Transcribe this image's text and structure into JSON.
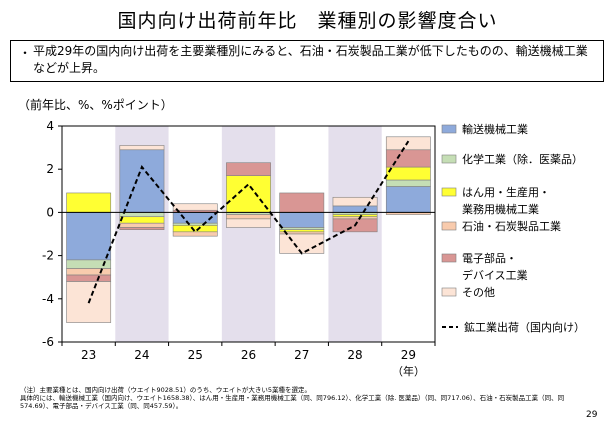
{
  "page": {
    "title": "国内向け出荷前年比　業種別の影響度合い",
    "bullet": "・",
    "summary": "平成29年の国内向け出荷を主要業種別にみると、石油・石炭製品工業が低下したものの、輸送機械工業などが上昇。",
    "unit_label": "（前年比、%、%ポイント）",
    "year_unit": "（年）",
    "notes": [
      "（注）主要業種とは、国内向け出荷（ウエイト9028.51）のうち、ウエイトが大きい5業種を選定。",
      "具体的には、輸送機械工業（国内向け、ウエイト1658.38）、はん用・生産用・業務用機械工業（同、同796.12）、化学工業（除. 医薬品）（同、同717.06）、石油・石炭製品工業（同、同",
      "574.69）、電子部品・デバイス工業（同、同457.59）。"
    ],
    "page_number": "29"
  },
  "chart_data": {
    "type": "bar",
    "stacked": true,
    "categories": [
      "23",
      "24",
      "25",
      "26",
      "27",
      "28",
      "29"
    ],
    "ylim": [
      -6,
      4
    ],
    "yticks": [
      4,
      2,
      0,
      -2,
      -4,
      -6
    ],
    "shaded_categories": [
      "24",
      "26",
      "28"
    ],
    "series": [
      {
        "name": "輸送機械工業",
        "color": "#8eaadb",
        "values": [
          -2.2,
          2.9,
          -0.5,
          0.0,
          -0.7,
          0.3,
          1.2
        ]
      },
      {
        "name": "化学工業（除．医薬品）",
        "color": "#c5deb5",
        "values": [
          -0.4,
          -0.2,
          -0.1,
          -0.1,
          -0.1,
          -0.1,
          0.3
        ]
      },
      {
        "name": "はん用・生産用・\n業務用機械工業",
        "color": "#ffff33",
        "values": [
          0.9,
          -0.3,
          -0.3,
          1.7,
          -0.1,
          -0.1,
          0.6
        ]
      },
      {
        "name": "石油・石炭製品工業",
        "color": "#f8cbad",
        "values": [
          -0.3,
          -0.2,
          -0.2,
          -0.2,
          -0.1,
          -0.1,
          -0.1
        ]
      },
      {
        "name": "電子部品・\nデバイス工業",
        "color": "#d99694",
        "values": [
          -0.3,
          -0.1,
          0.1,
          0.6,
          0.9,
          -0.6,
          0.8
        ]
      },
      {
        "name": "その他",
        "color": "#fce4d6",
        "values": [
          -1.9,
          0.2,
          0.3,
          -0.4,
          -0.9,
          0.4,
          0.6
        ]
      }
    ],
    "line": {
      "name": "鉱工業出荷（国内向け）",
      "color": "#000000",
      "dashed": true,
      "values": [
        -4.2,
        2.1,
        -0.9,
        1.3,
        -1.9,
        -0.6,
        3.3
      ]
    },
    "legend_position": "right",
    "grid": false
  }
}
